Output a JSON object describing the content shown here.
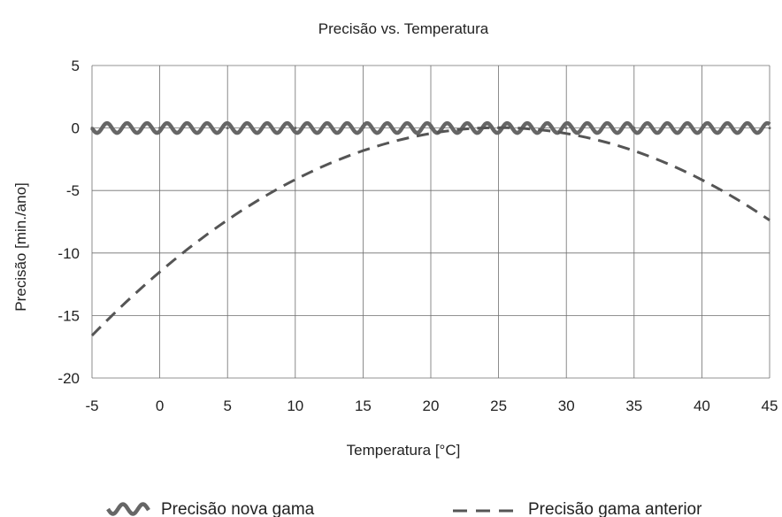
{
  "chart_data": {
    "type": "line",
    "title": "Precisão vs. Temperatura",
    "xlabel": "Temperatura [°C]",
    "ylabel": "Precisão [min./ano]",
    "xlim": [
      -5,
      45
    ],
    "ylim": [
      -20,
      5
    ],
    "xticks": [
      -5,
      0,
      5,
      10,
      15,
      20,
      25,
      30,
      35,
      40,
      45
    ],
    "yticks": [
      5,
      0,
      -5,
      -10,
      -15,
      -20
    ],
    "grid": true,
    "legend_position": "bottom",
    "series": [
      {
        "name": "Precisão nova gama",
        "style": "wavy-thick",
        "color": "#666666",
        "x": [
          -5,
          0,
          5,
          10,
          15,
          20,
          25,
          30,
          35,
          40,
          45
        ],
        "y": [
          0,
          0,
          0,
          0,
          0,
          0,
          0,
          0,
          0,
          0,
          0
        ]
      },
      {
        "name": "Precisão gama anterior",
        "style": "dashed",
        "color": "#555555",
        "x": [
          -5,
          0,
          5,
          10,
          15,
          20,
          25,
          30,
          35,
          40,
          45
        ],
        "y": [
          -16.6,
          -11.5,
          -7.4,
          -4.1,
          -1.8,
          -0.4,
          0,
          -0.5,
          -1.8,
          -4.1,
          -7.4
        ]
      }
    ]
  }
}
